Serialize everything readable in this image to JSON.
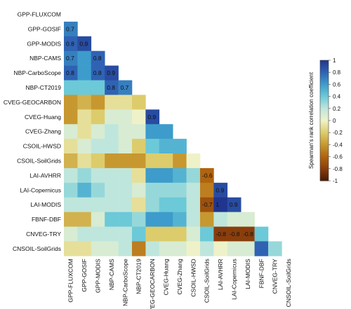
{
  "chart_data": {
    "type": "heatmap",
    "layout": "lower-triangle correlation matrix",
    "variables": [
      "GPP-FLUXCOM",
      "GPP-GOSIF",
      "GPP-MODIS",
      "NBP-CAMS",
      "NBP-CarboScope",
      "NBP-CT2019",
      "CVEG-GEOCARBON",
      "CVEG-Huang",
      "CVEG-Zhang",
      "CSOIL-HWSD",
      "CSOIL-SoilGrids",
      "LAI-AVHRR",
      "LAI-Copernicus",
      "LAI-MODIS",
      "FBNF-DBF",
      "CNVEG-TRY",
      "CNSOIL-SoilGrids"
    ],
    "matrix": [
      [],
      [
        0.7
      ],
      [
        0.8,
        0.9
      ],
      [
        0.7,
        0.6,
        0.8
      ],
      [
        0.8,
        0.6,
        0.8,
        0.9
      ],
      [
        0.4,
        0.4,
        0.4,
        0.8,
        0.7
      ],
      [
        -0.4,
        -0.3,
        -0.4,
        -0.1,
        -0.1,
        -0.2
      ],
      [
        -0.4,
        -0.1,
        -0.2,
        0.1,
        0.1,
        0.0,
        0.9
      ],
      [
        0.1,
        -0.1,
        0.1,
        0.2,
        0.1,
        0.1,
        0.6,
        0.6
      ],
      [
        -0.1,
        0.1,
        0.2,
        0.2,
        0.1,
        -0.2,
        0.4,
        0.5,
        0.5
      ],
      [
        -0.3,
        -0.1,
        -0.2,
        -0.4,
        -0.4,
        -0.4,
        -0.2,
        -0.2,
        -0.4,
        0.0
      ],
      [
        0.2,
        0.3,
        0.2,
        0.2,
        0.2,
        -0.1,
        0.6,
        0.6,
        0.5,
        0.3,
        -0.6
      ],
      [
        0.3,
        0.5,
        0.3,
        0.2,
        0.2,
        0.1,
        0.3,
        0.3,
        0.3,
        0.2,
        -0.5,
        0.9
      ],
      [
        0.2,
        0.2,
        0.2,
        0.2,
        0.2,
        -0.1,
        0.3,
        0.4,
        0.4,
        0.2,
        -0.7,
        1.0,
        0.9
      ],
      [
        -0.3,
        -0.3,
        0.1,
        0.4,
        0.4,
        0.3,
        0.6,
        0.6,
        0.5,
        0.2,
        -0.4,
        0.2,
        0.1,
        0.1
      ],
      [
        0.1,
        0.2,
        0.2,
        0.2,
        0.2,
        0.4,
        -0.2,
        -0.2,
        -0.2,
        0.1,
        0.4,
        -0.8,
        -0.8,
        -0.8,
        0.4
      ],
      [
        -0.1,
        -0.1,
        0.1,
        0.1,
        0.2,
        -0.5,
        0.2,
        0.1,
        0.1,
        0.0,
        0.2,
        0.0,
        0.1,
        0.1,
        0.8,
        0.3
      ]
    ],
    "annotated_cells": [
      {
        "row": 1,
        "col": 0,
        "label": "0.7"
      },
      {
        "row": 2,
        "col": 0,
        "label": "0.8"
      },
      {
        "row": 2,
        "col": 1,
        "label": "0.9"
      },
      {
        "row": 3,
        "col": 0,
        "label": "0.7"
      },
      {
        "row": 3,
        "col": 2,
        "label": "0.8"
      },
      {
        "row": 4,
        "col": 0,
        "label": "0.8"
      },
      {
        "row": 4,
        "col": 2,
        "label": "0.8"
      },
      {
        "row": 4,
        "col": 3,
        "label": "0.9"
      },
      {
        "row": 5,
        "col": 3,
        "label": "0.8"
      },
      {
        "row": 5,
        "col": 4,
        "label": "0.7"
      },
      {
        "row": 7,
        "col": 6,
        "label": "0.9"
      },
      {
        "row": 11,
        "col": 10,
        "label": "-0.6"
      },
      {
        "row": 12,
        "col": 11,
        "label": "0.9"
      },
      {
        "row": 13,
        "col": 10,
        "label": "-0.7"
      },
      {
        "row": 13,
        "col": 11,
        "label": "1"
      },
      {
        "row": 13,
        "col": 12,
        "label": "0.9"
      },
      {
        "row": 15,
        "col": 11,
        "label": "-0.8"
      },
      {
        "row": 15,
        "col": 12,
        "label": "-0.8"
      },
      {
        "row": 15,
        "col": 13,
        "label": "-0.8"
      }
    ],
    "colorbar": {
      "label": "Spearman's rank correlation coefficient",
      "range": [
        -1,
        1
      ],
      "ticks": [
        "1",
        "0.8",
        "0.6",
        "0.4",
        "0.2",
        "0",
        "-0.2",
        "-0.4",
        "-0.6",
        "-0.8",
        "-1"
      ],
      "colors": {
        "-1": "#4a1a06",
        "-0.8": "#8a3e0c",
        "-0.6": "#b0640e",
        "-0.4": "#c7982f",
        "-0.2": "#ddcc6c",
        "0": "#eff2c8",
        "0.2": "#bfe6dc",
        "0.4": "#6cc9d8",
        "0.6": "#3d9ccb",
        "0.8": "#2f62b3",
        "1": "#20358e"
      }
    }
  }
}
